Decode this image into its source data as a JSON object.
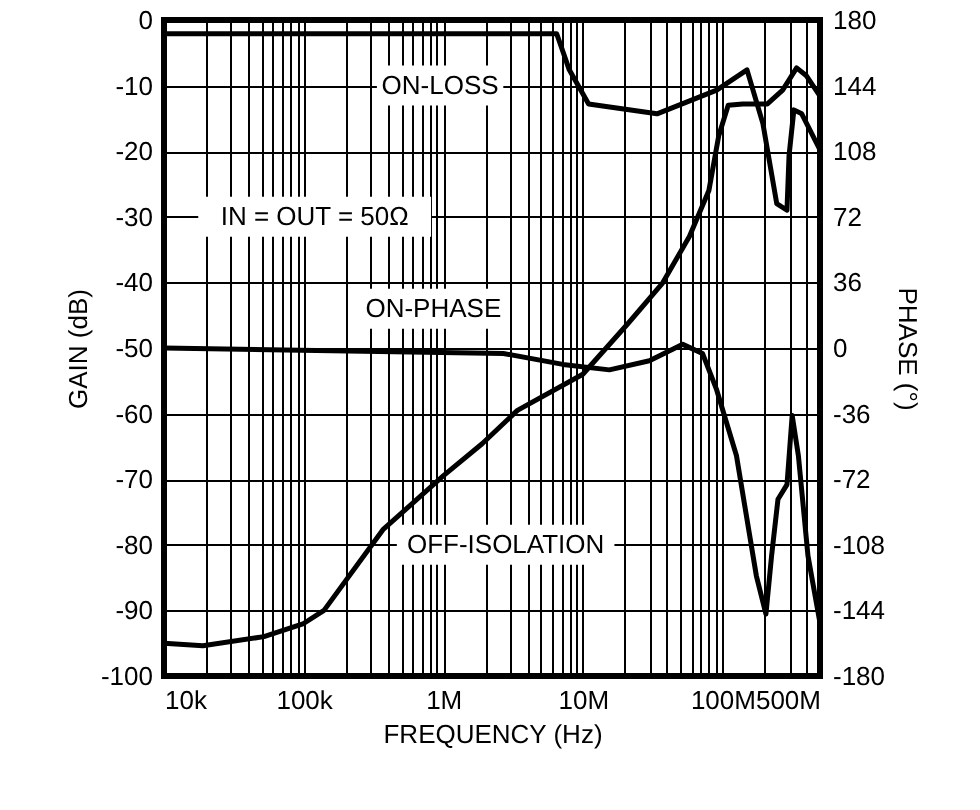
{
  "chart_data": {
    "type": "line",
    "xlabel": "FREQUENCY (Hz)",
    "ylabel": "GAIN (dB)",
    "y2label": "PHASE (°)",
    "log": "x",
    "grid": true,
    "xlim": [
      10000,
      500000000
    ],
    "ylim": [
      -100,
      0
    ],
    "y2lim": [
      -180,
      180
    ],
    "xticks": [
      {
        "value": 10000,
        "label": "10k"
      },
      {
        "value": 20000,
        "label": null
      },
      {
        "value": 30000,
        "label": null
      },
      {
        "value": 40000,
        "label": null
      },
      {
        "value": 50000,
        "label": null
      },
      {
        "value": 60000,
        "label": null
      },
      {
        "value": 70000,
        "label": null
      },
      {
        "value": 80000,
        "label": null
      },
      {
        "value": 90000,
        "label": null
      },
      {
        "value": 100000,
        "label": "100k"
      },
      {
        "value": 200000,
        "label": null
      },
      {
        "value": 300000,
        "label": null
      },
      {
        "value": 400000,
        "label": null
      },
      {
        "value": 500000,
        "label": null
      },
      {
        "value": 600000,
        "label": null
      },
      {
        "value": 700000,
        "label": null
      },
      {
        "value": 800000,
        "label": null
      },
      {
        "value": 900000,
        "label": null
      },
      {
        "value": 1000000,
        "label": "1M"
      },
      {
        "value": 2000000,
        "label": null
      },
      {
        "value": 3000000,
        "label": null
      },
      {
        "value": 4000000,
        "label": null
      },
      {
        "value": 5000000,
        "label": null
      },
      {
        "value": 6000000,
        "label": null
      },
      {
        "value": 7000000,
        "label": null
      },
      {
        "value": 8000000,
        "label": null
      },
      {
        "value": 9000000,
        "label": null
      },
      {
        "value": 10000000,
        "label": "10M"
      },
      {
        "value": 20000000,
        "label": null
      },
      {
        "value": 30000000,
        "label": null
      },
      {
        "value": 40000000,
        "label": null
      },
      {
        "value": 50000000,
        "label": null
      },
      {
        "value": 60000000,
        "label": null
      },
      {
        "value": 70000000,
        "label": null
      },
      {
        "value": 80000000,
        "label": null
      },
      {
        "value": 90000000,
        "label": null
      },
      {
        "value": 100000000,
        "label": "100M"
      },
      {
        "value": 200000000,
        "label": null
      },
      {
        "value": 300000000,
        "label": null
      },
      {
        "value": 400000000,
        "label": null
      },
      {
        "value": 500000000,
        "label": "500M"
      }
    ],
    "yticks": [
      0,
      -10,
      -20,
      -30,
      -40,
      -50,
      -60,
      -70,
      -80,
      -90,
      -100
    ],
    "y2ticks": [
      180,
      144,
      108,
      72,
      36,
      0,
      -36,
      -72,
      -108,
      -144,
      -180
    ],
    "annotations": [
      "IN = OUT = 50Ω"
    ],
    "series": [
      {
        "name": "ON-LOSS",
        "color": "#000000",
        "x": [
          10000,
          6500000,
          8000000,
          11000000,
          34000000,
          91000000,
          150000000,
          195000000,
          245000000,
          290000000,
          300000000,
          325000000,
          370000000,
          500000000
        ],
        "values": [
          -2.1,
          -2.1,
          -7.6,
          -12.8,
          -14.3,
          -10.7,
          -7.6,
          -15.8,
          -28,
          -29,
          -20.7,
          -13.7,
          -14.3,
          -19.8
        ]
      },
      {
        "name": "ON-PHASE",
        "color": "#000000",
        "axis": "y2",
        "x": [
          10000,
          2700000,
          7200000,
          15500000,
          30000000,
          52000000,
          72000000,
          91000000,
          126000000,
          175000000,
          205000000,
          225000000,
          250000000,
          290000000,
          316000000,
          350000000,
          410000000,
          500000000
        ],
        "values": [
          0,
          -3,
          -9,
          -12,
          -7,
          2,
          -3,
          -23,
          -59,
          -125,
          -146,
          -114,
          -83,
          -75,
          -37,
          -59,
          -114,
          -151
        ]
      },
      {
        "name": "OFF-ISOLATION",
        "color": "#000000",
        "x": [
          10000,
          19000,
          52000,
          100000,
          140000,
          370000,
          1000000,
          1900000,
          3400000,
          10000000,
          21000000,
          37000000,
          58000000,
          80000000,
          94000000,
          110000000,
          140000000,
          210000000,
          270000000,
          340000000,
          400000000,
          500000000
        ],
        "values": [
          -95,
          -95.4,
          -94,
          -92,
          -90,
          -77.7,
          -69.5,
          -64.6,
          -59.5,
          -54,
          -46.3,
          -40.2,
          -33,
          -26,
          -17.7,
          -13,
          -12.8,
          -12.8,
          -10.7,
          -7.3,
          -8.5,
          -11.6
        ]
      }
    ]
  }
}
